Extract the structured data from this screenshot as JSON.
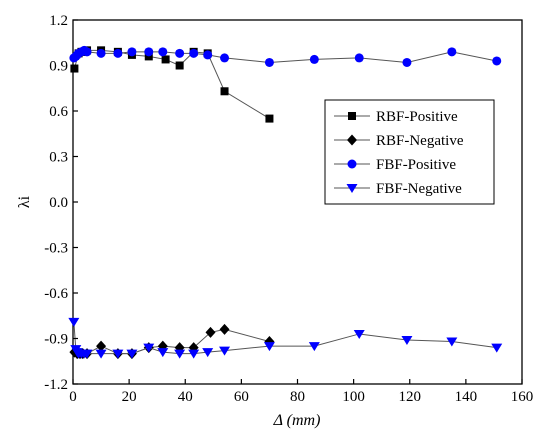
{
  "chart_data": {
    "type": "line",
    "title": "",
    "xlabel": "Δ (mm)",
    "ylabel": "λi",
    "xlim": [
      0,
      160
    ],
    "ylim": [
      -1.2,
      1.2
    ],
    "xticks": [
      "0",
      "20",
      "40",
      "60",
      "80",
      "100",
      "120",
      "140",
      "160"
    ],
    "yticks": [
      "-1.2",
      "-0.9",
      "-0.6",
      "-0.3",
      "0.0",
      "0.3",
      "0.6",
      "0.9",
      "1.2"
    ],
    "grid": false,
    "legend_position": "right-center",
    "series": [
      {
        "name": "RBF-Positive",
        "marker": "square",
        "color": "#000000",
        "points": [
          [
            0.5,
            0.88
          ],
          [
            2,
            0.98
          ],
          [
            3,
            0.99
          ],
          [
            4,
            0.99
          ],
          [
            5,
            1.0
          ],
          [
            10,
            1.0
          ],
          [
            16,
            0.99
          ],
          [
            21,
            0.97
          ],
          [
            27,
            0.96
          ],
          [
            33,
            0.94
          ],
          [
            38,
            0.9
          ],
          [
            43,
            0.99
          ],
          [
            48,
            0.98
          ],
          [
            54,
            0.73
          ],
          [
            70,
            0.55
          ]
        ]
      },
      {
        "name": "RBF-Negative",
        "marker": "diamond",
        "color": "#000000",
        "points": [
          [
            0.5,
            -0.99
          ],
          [
            1.5,
            -1.0
          ],
          [
            2.5,
            -1.0
          ],
          [
            3.5,
            -1.0
          ],
          [
            5,
            -1.0
          ],
          [
            10,
            -0.95
          ],
          [
            16,
            -1.0
          ],
          [
            21,
            -1.0
          ],
          [
            27,
            -0.96
          ],
          [
            32,
            -0.95
          ],
          [
            38,
            -0.96
          ],
          [
            43,
            -0.96
          ],
          [
            49,
            -0.86
          ],
          [
            54,
            -0.84
          ],
          [
            70,
            -0.92
          ]
        ]
      },
      {
        "name": "FBF-Positive",
        "marker": "circle",
        "color": "#0000ff",
        "points": [
          [
            0.3,
            0.95
          ],
          [
            1,
            0.96
          ],
          [
            1.5,
            0.97
          ],
          [
            2,
            0.98
          ],
          [
            3,
            0.99
          ],
          [
            4,
            1.0
          ],
          [
            5,
            0.99
          ],
          [
            10,
            0.98
          ],
          [
            16,
            0.98
          ],
          [
            21,
            0.99
          ],
          [
            27,
            0.99
          ],
          [
            32,
            0.99
          ],
          [
            38,
            0.98
          ],
          [
            43,
            0.98
          ],
          [
            48,
            0.97
          ],
          [
            54,
            0.95
          ],
          [
            70,
            0.92
          ],
          [
            86,
            0.94
          ],
          [
            102,
            0.95
          ],
          [
            119,
            0.92
          ],
          [
            135,
            0.99
          ],
          [
            151,
            0.93
          ]
        ]
      },
      {
        "name": "FBF-Negative",
        "marker": "triangle-down",
        "color": "#0000ff",
        "points": [
          [
            0.3,
            -0.79
          ],
          [
            1,
            -0.97
          ],
          [
            1.5,
            -0.99
          ],
          [
            2,
            -1.0
          ],
          [
            3,
            -1.0
          ],
          [
            4,
            -1.0
          ],
          [
            5,
            -1.0
          ],
          [
            10,
            -1.0
          ],
          [
            16,
            -1.0
          ],
          [
            21,
            -1.0
          ],
          [
            27,
            -0.96
          ],
          [
            32,
            -0.99
          ],
          [
            38,
            -1.0
          ],
          [
            43,
            -1.0
          ],
          [
            48,
            -0.99
          ],
          [
            54,
            -0.98
          ],
          [
            70,
            -0.95
          ],
          [
            86,
            -0.95
          ],
          [
            102,
            -0.87
          ],
          [
            119,
            -0.91
          ],
          [
            135,
            -0.92
          ],
          [
            151,
            -0.96
          ]
        ]
      }
    ]
  }
}
